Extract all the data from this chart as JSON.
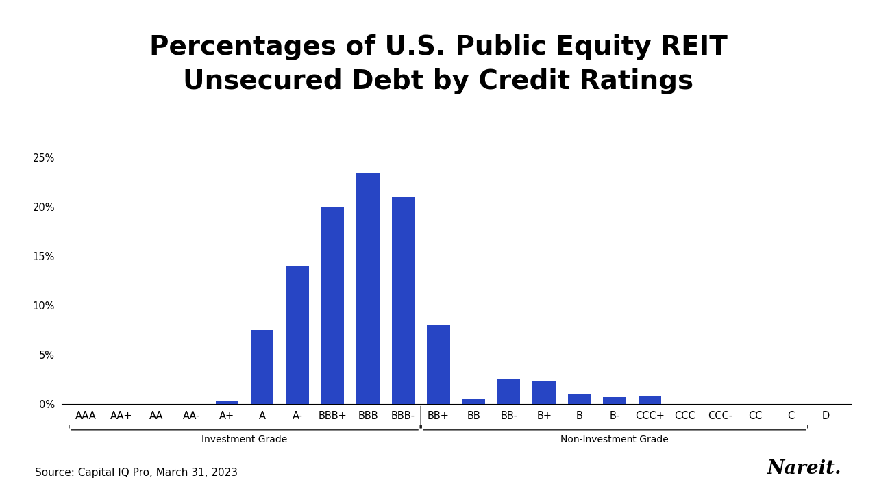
{
  "title": "Percentages of U.S. Public Equity REIT\nUnsecured Debt by Credit Ratings",
  "categories": [
    "AAA",
    "AA+",
    "AA",
    "AA-",
    "A+",
    "A",
    "A-",
    "BBB+",
    "BBB",
    "BBB-",
    "BB+",
    "BB",
    "BB-",
    "B+",
    "B",
    "B-",
    "CCC+",
    "CCC",
    "CCC-",
    "CC",
    "C",
    "D"
  ],
  "values": [
    0.0,
    0.0,
    0.0,
    0.0,
    0.3,
    7.5,
    14.0,
    20.0,
    23.5,
    21.0,
    8.0,
    0.5,
    2.6,
    2.3,
    1.0,
    0.7,
    0.8,
    0.0,
    0.0,
    0.0,
    0.0,
    0.0
  ],
  "bar_color": "#2745C4",
  "ylim": [
    0,
    26
  ],
  "yticks": [
    0,
    5,
    10,
    15,
    20,
    25
  ],
  "yticklabels": [
    "0%",
    "5%",
    "10%",
    "15%",
    "20%",
    "25%"
  ],
  "investment_grade_label": "Investment Grade",
  "non_investment_grade_label": "Non-Investment Grade",
  "source_text": "Source: Capital IQ Pro, March 31, 2023",
  "nareit_text": "Nareit.",
  "background_color": "#ffffff",
  "title_fontsize": 28,
  "tick_fontsize": 10.5,
  "source_fontsize": 11,
  "nareit_fontsize": 20,
  "group_label_fontsize": 10
}
